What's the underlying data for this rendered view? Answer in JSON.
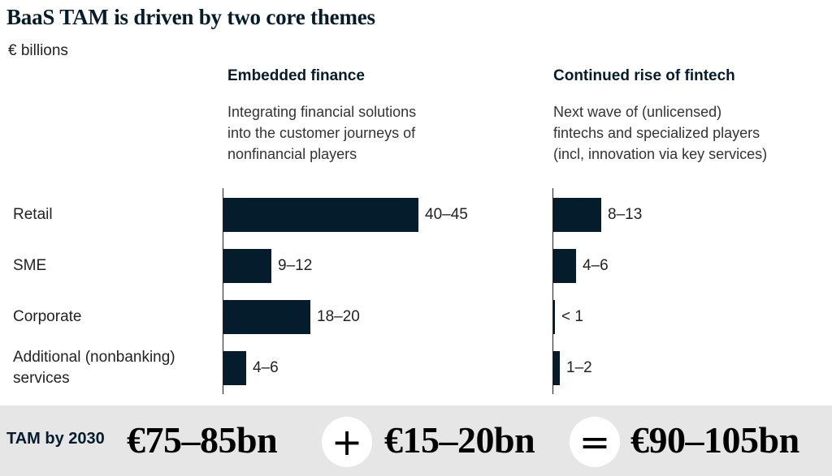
{
  "chart_data": {
    "type": "bar",
    "orientation": "horizontal",
    "title": "BaaS TAM is driven by two core themes",
    "subtitle": "€ billions",
    "categories": [
      "Retail",
      "SME",
      "Corporate",
      "Additional (nonbanking) services"
    ],
    "panels": [
      {
        "name": "Embedded finance",
        "description_lines": [
          "Integrating financial solutions",
          "into the customer journeys of",
          "nonfinancial players"
        ],
        "values": [
          42.5,
          10.5,
          19,
          5
        ],
        "labels": [
          "40–45",
          "9–12",
          "18–20",
          "4–6"
        ]
      },
      {
        "name": "Continued rise of fintech",
        "description_lines": [
          "Next wave of (unlicensed)",
          "fintechs and specialized players",
          "(incl, innovation via key services)"
        ],
        "values": [
          10.5,
          5,
          0.3,
          1.5
        ],
        "labels": [
          "8–13",
          "4–6",
          "< 1",
          "1–2"
        ]
      }
    ],
    "xlim": [
      0,
      42.5
    ],
    "grid": false,
    "legend": "none"
  },
  "footer": {
    "label": "TAM by 2030",
    "value1": "€75–85bn",
    "op1": "+",
    "value2": "€15–20bn",
    "op2": "=",
    "total": "€90–105bn"
  },
  "colors": {
    "bar": "#051c2c",
    "footer_bg": "#e6e6e6"
  }
}
